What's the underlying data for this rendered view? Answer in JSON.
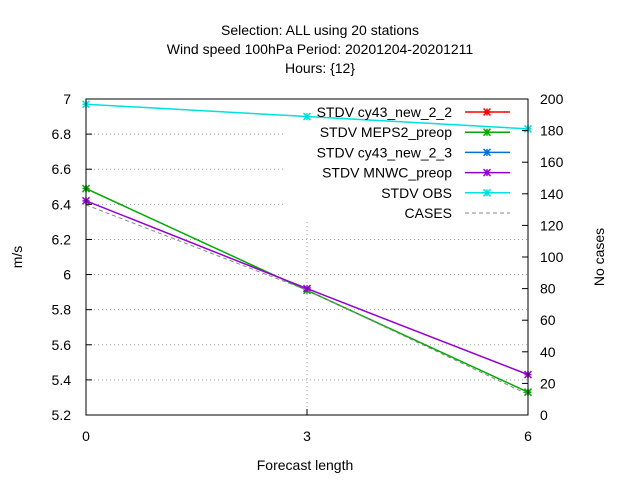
{
  "chart_data": {
    "type": "line",
    "title_lines": [
      "Selection: ALL using     20 stations",
      "Wind speed 100hPa   Period: 20201204-20201211",
      "Hours: {12}"
    ],
    "xlabel": "Forecast length",
    "ylabel": "m/s",
    "y2label": "No cases",
    "x": [
      0,
      3,
      6
    ],
    "xlim": [
      0,
      6
    ],
    "ylim": [
      5.2,
      7.0
    ],
    "y2lim": [
      0,
      200
    ],
    "xticks": [
      "0",
      "3",
      "6"
    ],
    "yticks": [
      "5.2",
      "5.4",
      "5.6",
      "5.8",
      "6",
      "6.2",
      "6.4",
      "6.6",
      "6.8",
      "7"
    ],
    "y2ticks": [
      "0",
      "20",
      "40",
      "60",
      "80",
      "100",
      "120",
      "140",
      "160",
      "180",
      "200"
    ],
    "grid": true,
    "legend_position": "top-right",
    "series": [
      {
        "name": "STDV cy43_new_2_2",
        "axis": "y",
        "color": "#ff0000",
        "marker": "x",
        "values": [
          null,
          null,
          null
        ]
      },
      {
        "name": "STDV MEPS2_preop",
        "axis": "y",
        "color": "#00aa00",
        "marker": "x",
        "values": [
          6.49,
          5.91,
          5.33
        ]
      },
      {
        "name": "STDV cy43_new_2_3",
        "axis": "y",
        "color": "#0070e0",
        "marker": "x",
        "values": [
          null,
          null,
          null
        ]
      },
      {
        "name": "STDV MNWC_preop",
        "axis": "y",
        "color": "#9400d3",
        "marker": "x",
        "values": [
          6.42,
          5.92,
          5.43
        ]
      },
      {
        "name": "STDV OBS",
        "axis": "y",
        "color": "#00e0e0",
        "marker": "x",
        "values": [
          6.97,
          6.9,
          6.83
        ]
      },
      {
        "name": "CASES",
        "axis": "y2",
        "color": "#888888",
        "dash": true,
        "values": [
          133,
          79,
          13
        ]
      }
    ]
  }
}
